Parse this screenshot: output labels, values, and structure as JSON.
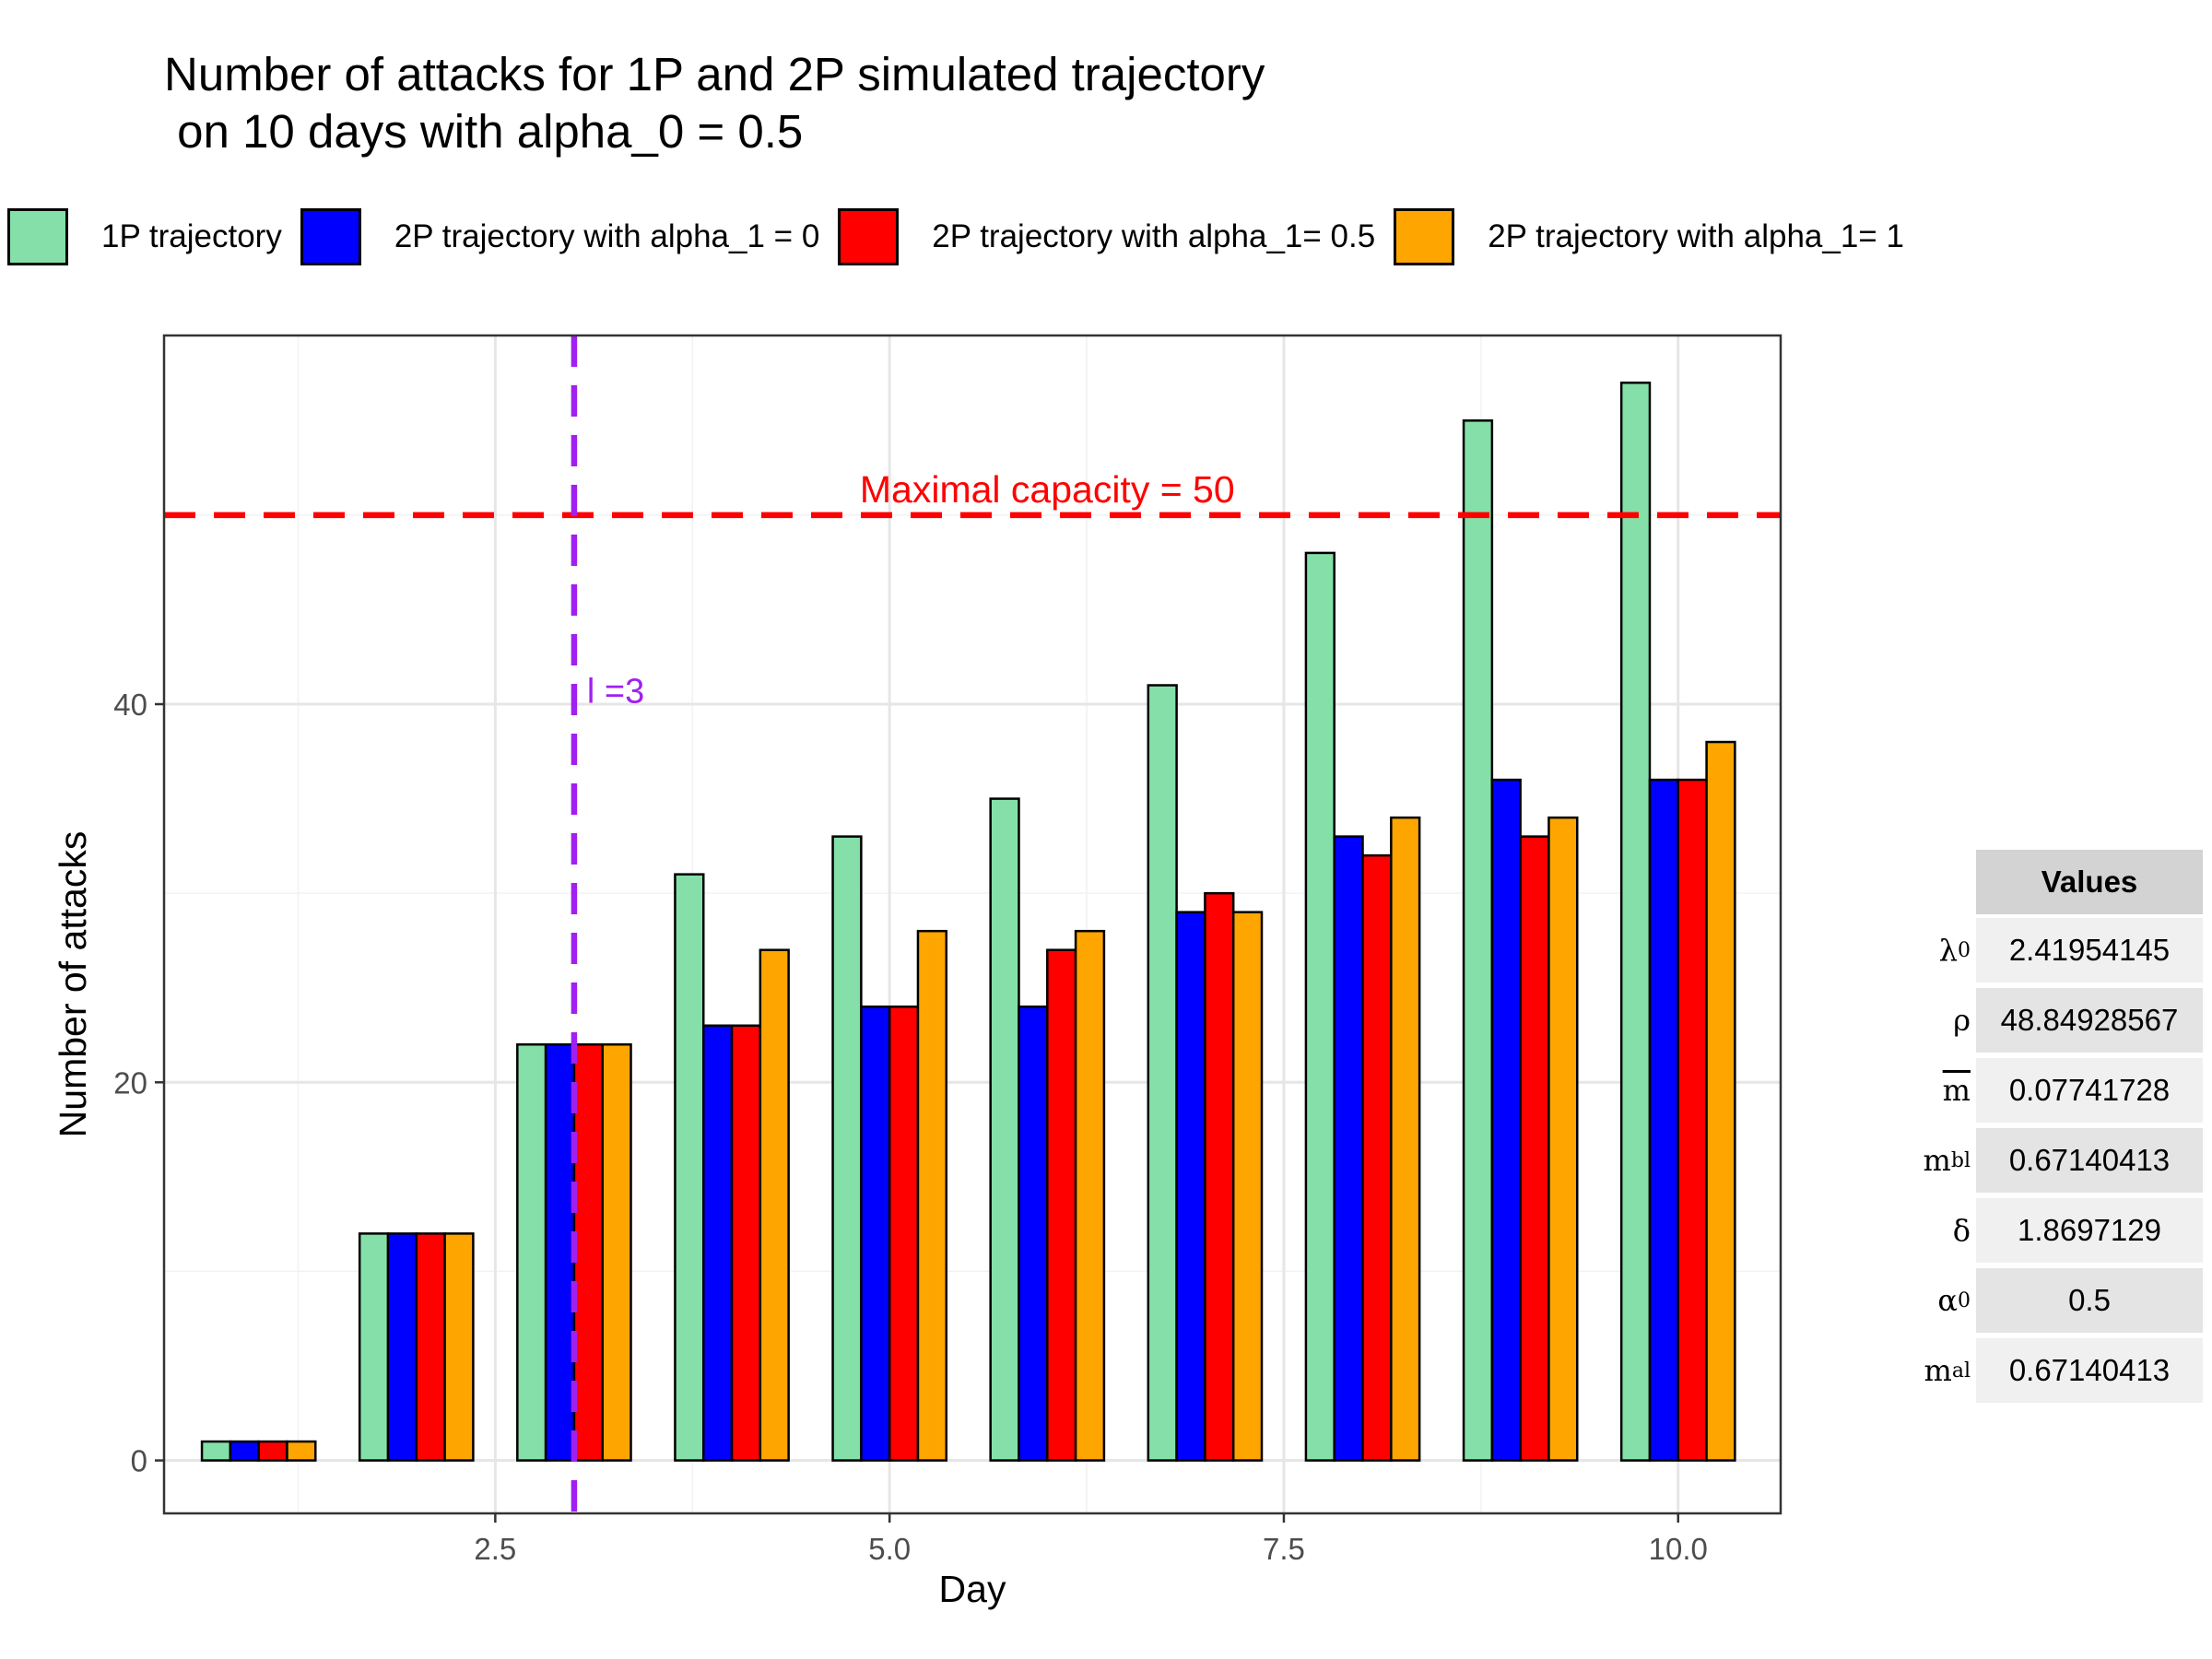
{
  "chart_data": {
    "type": "bar",
    "title_line1": "Number of attacks for 1P and 2P simulated trajectory",
    "title_line2": " on 10 days with alpha_0 = 0.5",
    "xlabel": "Day",
    "ylabel": "Number of attacks",
    "x": [
      1,
      2,
      3,
      4,
      5,
      6,
      7,
      8,
      9,
      10
    ],
    "xlim": [
      0.4,
      10.65
    ],
    "ylim": [
      -2.8,
      59.5
    ],
    "x_ticks": [
      2.5,
      5.0,
      7.5,
      10.0
    ],
    "x_tick_labels": [
      "2.5",
      "5.0",
      "7.5",
      "10.0"
    ],
    "y_ticks": [
      0,
      20,
      40
    ],
    "y_tick_labels": [
      "0",
      "20",
      "40"
    ],
    "grid": true,
    "legend_position": "top",
    "series": [
      {
        "name": "1P trajectory",
        "color": "#84e0a8",
        "values": [
          1,
          12,
          22,
          31,
          33,
          35,
          41,
          48,
          55,
          57
        ]
      },
      {
        "name": "2P trajectory with alpha_1 = 0",
        "color": "#0000ff",
        "values": [
          1,
          12,
          22,
          23,
          24,
          24,
          29,
          33,
          36,
          36
        ]
      },
      {
        "name": "2P trajectory with alpha_1= 0.5",
        "color": "#ff0000",
        "values": [
          1,
          12,
          22,
          23,
          24,
          27,
          30,
          32,
          33,
          36
        ]
      },
      {
        "name": "2P trajectory with alpha_1= 1",
        "color": "#ffa500",
        "values": [
          1,
          12,
          22,
          27,
          28,
          28,
          29,
          34,
          34,
          38
        ]
      }
    ],
    "annotations": [
      {
        "type": "hline",
        "y": 50,
        "color": "#ff0000",
        "label": "Maximal capacity = 50",
        "label_x": 6.0
      },
      {
        "type": "vline",
        "x": 3,
        "color": "#a020f0",
        "label": "l =3",
        "label_y": 40.8
      }
    ]
  },
  "params_table": {
    "header": "Values",
    "rows": [
      {
        "sym": "λ",
        "sub": "0",
        "sup": "",
        "over": false,
        "value": "2.41954145"
      },
      {
        "sym": "ρ",
        "sub": "",
        "sup": "",
        "over": false,
        "value": "48.84928567"
      },
      {
        "sym": "m",
        "sub": "",
        "sup": "",
        "over": true,
        "value": "0.07741728"
      },
      {
        "sym": "m",
        "sub": "",
        "sup": "bl",
        "over": false,
        "value": "0.67140413"
      },
      {
        "sym": "δ",
        "sub": "",
        "sup": "",
        "over": false,
        "value": "1.8697129"
      },
      {
        "sym": "α",
        "sub": "0",
        "sup": "",
        "over": false,
        "value": "0.5"
      },
      {
        "sym": "m",
        "sub": "",
        "sup": "al",
        "over": false,
        "value": "0.67140413"
      }
    ],
    "row_fills": [
      "#f0f0f0",
      "#e4e4e4",
      "#f0f0f0",
      "#e4e4e4",
      "#f0f0f0",
      "#e4e4e4",
      "#f0f0f0"
    ]
  }
}
